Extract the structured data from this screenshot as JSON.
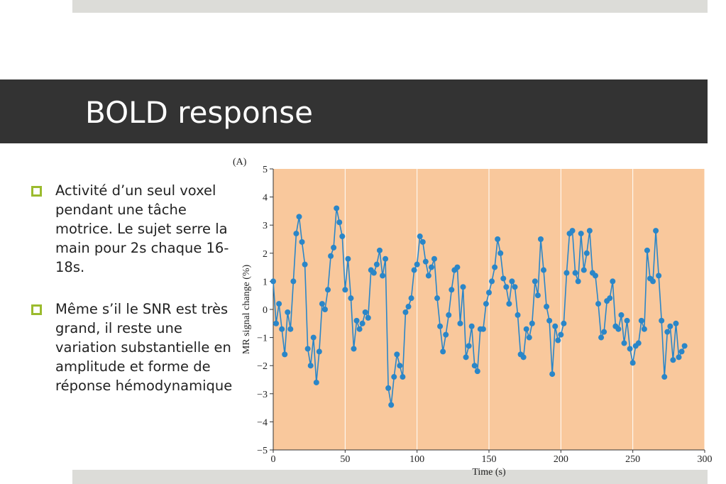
{
  "header": {
    "title": "BOLD response"
  },
  "bullets": [
    "Activité d’un seul voxel pendant une tâche motrice. Le sujet serre la main pour 2s chaque 16-18s.",
    "Même s’il le SNR est très grand, il reste une variation substantielle en amplitude et forme de réponse hémodynamique"
  ],
  "chart_data": {
    "type": "line",
    "panel_label": "(A)",
    "x_label": "Time (s)",
    "y_label": "MR signal change (%)",
    "background": "#f9c89c",
    "grid": true,
    "x": [
      0,
      2,
      4,
      6,
      8,
      10,
      12,
      14,
      16,
      18,
      20,
      22,
      24,
      26,
      28,
      30,
      32,
      34,
      36,
      38,
      40,
      42,
      44,
      46,
      48,
      50,
      52,
      54,
      56,
      58,
      60,
      62,
      64,
      66,
      68,
      70,
      72,
      74,
      76,
      78,
      80,
      82,
      84,
      86,
      88,
      90,
      92,
      94,
      96,
      98,
      100,
      102,
      104,
      106,
      108,
      110,
      112,
      114,
      116,
      118,
      120,
      122,
      124,
      126,
      128,
      130,
      132,
      134,
      136,
      138,
      140,
      142,
      144,
      146,
      148,
      150,
      152,
      154,
      156,
      158,
      160,
      162,
      164,
      166,
      168,
      170,
      172,
      174,
      176,
      178,
      180,
      182,
      184,
      186,
      188,
      190,
      192,
      194,
      196,
      198,
      200,
      202,
      204,
      206,
      208,
      210,
      212,
      214,
      216,
      218,
      220,
      222,
      224,
      226,
      228,
      230,
      232,
      234,
      236,
      238,
      240,
      242,
      244,
      246,
      248,
      250,
      252,
      254,
      256,
      258,
      260,
      262,
      264,
      266,
      268,
      270,
      272,
      274,
      276,
      278,
      280,
      282,
      284,
      286
    ],
    "series": [
      {
        "color": "#2a86c8",
        "values": [
          1.0,
          -0.5,
          0.2,
          -0.7,
          -1.6,
          -0.1,
          -0.7,
          1.0,
          2.7,
          3.3,
          2.4,
          1.6,
          -1.4,
          -2.0,
          -1.0,
          -2.6,
          -1.5,
          0.2,
          0.0,
          0.7,
          1.9,
          2.2,
          3.6,
          3.1,
          2.6,
          0.7,
          1.8,
          0.4,
          -1.4,
          -0.4,
          -0.7,
          -0.5,
          -0.1,
          -0.3,
          1.4,
          1.3,
          1.6,
          2.1,
          1.2,
          1.8,
          -2.8,
          -3.4,
          -2.4,
          -1.6,
          -2.0,
          -2.4,
          -0.1,
          0.1,
          0.4,
          1.4,
          1.6,
          2.6,
          2.4,
          1.7,
          1.2,
          1.5,
          1.8,
          0.4,
          -0.6,
          -1.5,
          -0.9,
          -0.2,
          0.7,
          1.4,
          1.5,
          -0.5,
          0.8,
          -1.7,
          -1.3,
          -0.6,
          -2.0,
          -2.2,
          -0.7,
          -0.7,
          0.2,
          0.6,
          1.0,
          1.5,
          2.5,
          2.0,
          1.1,
          0.8,
          0.2,
          1.0,
          0.8,
          -0.2,
          -1.6,
          -1.7,
          -0.7,
          -1.0,
          -0.5,
          1.0,
          0.5,
          2.5,
          1.4,
          0.1,
          -0.4,
          -2.3,
          -0.6,
          -1.1,
          -0.9,
          -0.5,
          1.3,
          2.7,
          2.8,
          1.3,
          1.0,
          2.7,
          1.4,
          2.0,
          2.8,
          1.3,
          1.2,
          0.2,
          -1.0,
          -0.8,
          0.3,
          0.4,
          1.0,
          -0.6,
          -0.7,
          -0.2,
          -1.2,
          -0.4,
          -1.4,
          -1.9,
          -1.3,
          -1.2,
          -0.4,
          -0.7,
          2.1,
          1.1,
          1.0,
          2.8,
          1.2,
          -0.4,
          -2.4,
          -0.8,
          -0.6,
          -1.8,
          -0.5,
          -1.7,
          -1.5,
          -1.3
        ]
      }
    ],
    "xlim": [
      0,
      300
    ],
    "xticks": [
      0,
      50,
      100,
      150,
      200,
      250,
      300
    ],
    "ylim": [
      -5,
      5
    ],
    "yticks": [
      {
        "value": -5,
        "label": "−5"
      },
      {
        "value": -4,
        "label": "−4"
      },
      {
        "value": -3,
        "label": "−3"
      },
      {
        "value": -2,
        "label": "−2"
      },
      {
        "value": -1,
        "label": "−1"
      },
      0,
      1,
      2,
      3,
      4,
      5
    ]
  }
}
